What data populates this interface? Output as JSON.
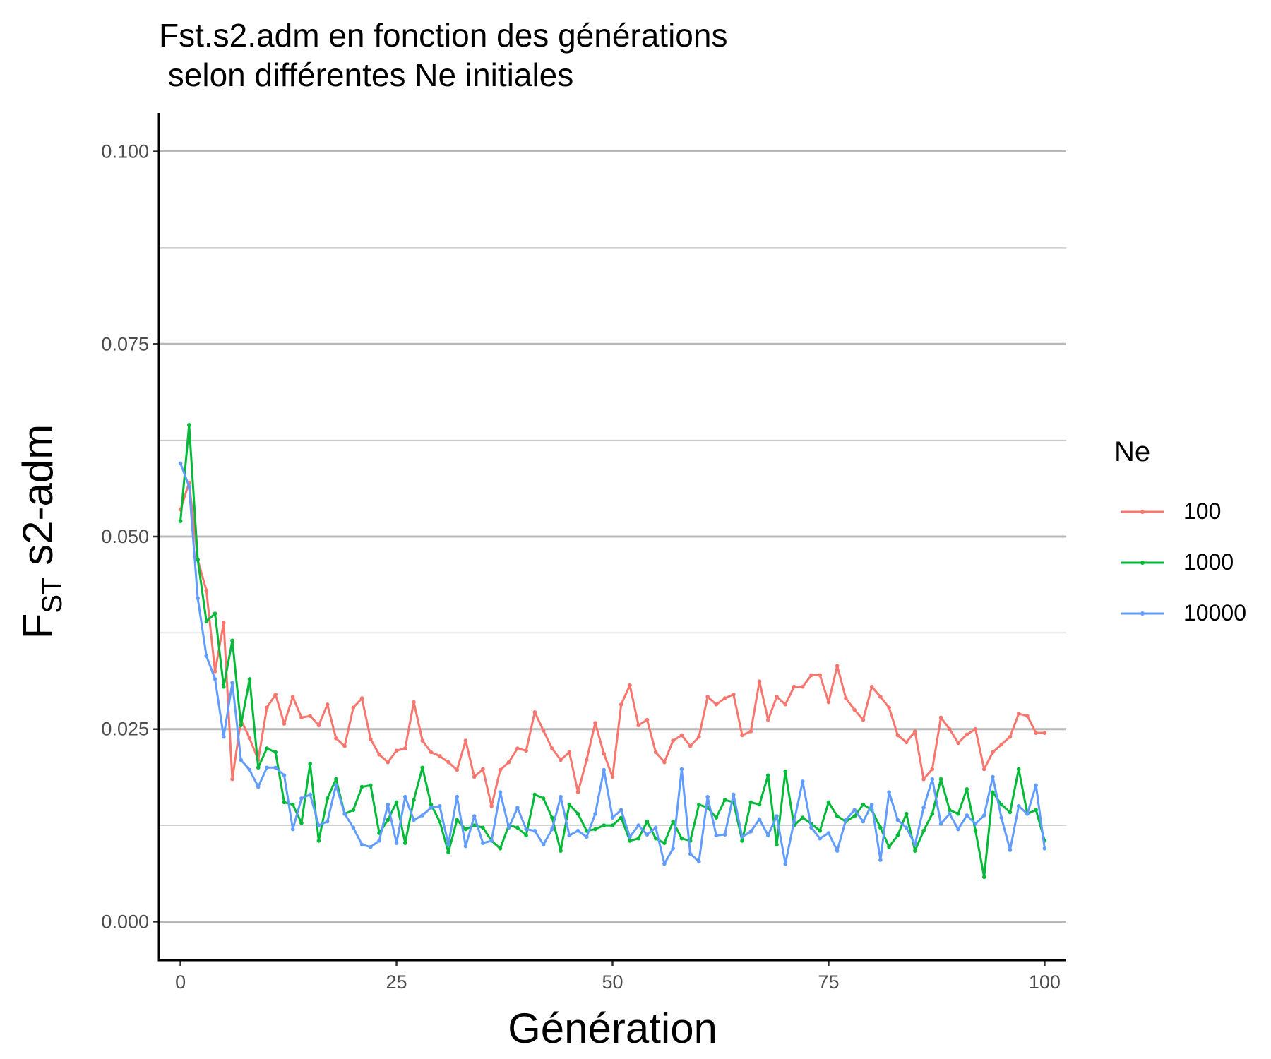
{
  "chart_data": {
    "type": "line",
    "title": "Fst.s2.adm en fonction des générations\n selon différentes Ne initiales",
    "xlabel": "Génération",
    "ylabel_main": "F",
    "ylabel_sub": "ST",
    "ylabel_rest": " s2-adm",
    "xlim": [
      -2.5,
      102.5
    ],
    "ylim": [
      -0.005,
      0.105
    ],
    "x_ticks": [
      0,
      25,
      50,
      75,
      100
    ],
    "x_tick_labels": [
      "0",
      "25",
      "50",
      "75",
      "100"
    ],
    "y_ticks": [
      0.0,
      0.025,
      0.05,
      0.075,
      0.1
    ],
    "y_tick_labels": [
      "0.000",
      "0.025",
      "0.050",
      "0.075",
      "0.100"
    ],
    "y_minor_ticks": [
      0.0125,
      0.0375,
      0.0625,
      0.0875
    ],
    "grid": "horizontal",
    "legend": {
      "title": "Ne",
      "position": "right"
    },
    "x": [
      0,
      1,
      2,
      3,
      4,
      5,
      6,
      7,
      8,
      9,
      10,
      11,
      12,
      13,
      14,
      15,
      16,
      17,
      18,
      19,
      20,
      21,
      22,
      23,
      24,
      25,
      26,
      27,
      28,
      29,
      30,
      31,
      32,
      33,
      34,
      35,
      36,
      37,
      38,
      39,
      40,
      41,
      42,
      43,
      44,
      45,
      46,
      47,
      48,
      49,
      50,
      51,
      52,
      53,
      54,
      55,
      56,
      57,
      58,
      59,
      60,
      61,
      62,
      63,
      64,
      65,
      66,
      67,
      68,
      69,
      70,
      71,
      72,
      73,
      74,
      75,
      76,
      77,
      78,
      79,
      80,
      81,
      82,
      83,
      84,
      85,
      86,
      87,
      88,
      89,
      90,
      91,
      92,
      93,
      94,
      95,
      96,
      97,
      98,
      99,
      100
    ],
    "series": [
      {
        "name": "100",
        "color": "#F8766D",
        "values": [
          0.0535,
          0.057,
          0.047,
          0.043,
          0.0325,
          0.0388,
          0.0185,
          0.0262,
          0.0238,
          0.021,
          0.0278,
          0.0295,
          0.0257,
          0.0292,
          0.0265,
          0.0267,
          0.0255,
          0.0282,
          0.0238,
          0.0228,
          0.0278,
          0.029,
          0.0237,
          0.0217,
          0.0207,
          0.0222,
          0.0225,
          0.0285,
          0.0235,
          0.022,
          0.0215,
          0.0207,
          0.0197,
          0.0235,
          0.0188,
          0.0198,
          0.015,
          0.0197,
          0.0207,
          0.0225,
          0.0222,
          0.0272,
          0.0248,
          0.0225,
          0.021,
          0.022,
          0.0168,
          0.021,
          0.0258,
          0.0218,
          0.0188,
          0.0282,
          0.0307,
          0.0255,
          0.0262,
          0.022,
          0.0207,
          0.0235,
          0.0242,
          0.0228,
          0.024,
          0.0292,
          0.0282,
          0.029,
          0.0295,
          0.0242,
          0.0247,
          0.0312,
          0.0262,
          0.0292,
          0.0282,
          0.0305,
          0.0305,
          0.032,
          0.032,
          0.0285,
          0.0332,
          0.029,
          0.0275,
          0.0262,
          0.0305,
          0.0292,
          0.0278,
          0.0242,
          0.0233,
          0.0247,
          0.0185,
          0.0198,
          0.0265,
          0.025,
          0.0232,
          0.0243,
          0.025,
          0.0198,
          0.022,
          0.023,
          0.024,
          0.027,
          0.0267,
          0.0245,
          0.0245
        ]
      },
      {
        "name": "1000",
        "color": "#00BA38",
        "values": [
          0.052,
          0.0645,
          0.047,
          0.039,
          0.04,
          0.0305,
          0.0365,
          0.0255,
          0.0315,
          0.02,
          0.0225,
          0.022,
          0.0155,
          0.0152,
          0.0128,
          0.0205,
          0.0105,
          0.016,
          0.0185,
          0.014,
          0.0145,
          0.0175,
          0.0177,
          0.0115,
          0.0132,
          0.0155,
          0.0102,
          0.0158,
          0.02,
          0.0152,
          0.013,
          0.009,
          0.0132,
          0.012,
          0.0125,
          0.0122,
          0.0105,
          0.0095,
          0.0125,
          0.0122,
          0.0112,
          0.0165,
          0.016,
          0.0135,
          0.0092,
          0.0152,
          0.014,
          0.0118,
          0.012,
          0.0125,
          0.0125,
          0.0135,
          0.0105,
          0.0108,
          0.013,
          0.0108,
          0.0102,
          0.013,
          0.0108,
          0.0105,
          0.0152,
          0.0148,
          0.0135,
          0.0158,
          0.0155,
          0.0105,
          0.0155,
          0.0152,
          0.019,
          0.01,
          0.0195,
          0.0125,
          0.0135,
          0.0127,
          0.0118,
          0.0155,
          0.0137,
          0.013,
          0.0137,
          0.0152,
          0.0145,
          0.0122,
          0.0097,
          0.0112,
          0.014,
          0.0092,
          0.0118,
          0.014,
          0.0185,
          0.0145,
          0.014,
          0.0172,
          0.0118,
          0.0058,
          0.0168,
          0.0152,
          0.0142,
          0.0198,
          0.014,
          0.0145,
          0.0105
        ]
      },
      {
        "name": "10000",
        "color": "#619CFF",
        "values": [
          0.0595,
          0.0565,
          0.042,
          0.0345,
          0.0315,
          0.024,
          0.031,
          0.021,
          0.0197,
          0.0175,
          0.02,
          0.02,
          0.019,
          0.012,
          0.016,
          0.0165,
          0.0125,
          0.013,
          0.0177,
          0.014,
          0.0122,
          0.01,
          0.0097,
          0.0105,
          0.0152,
          0.0102,
          0.0162,
          0.0132,
          0.0138,
          0.0148,
          0.015,
          0.01,
          0.0162,
          0.0098,
          0.0137,
          0.0102,
          0.0105,
          0.0168,
          0.0122,
          0.0148,
          0.012,
          0.0118,
          0.01,
          0.012,
          0.0162,
          0.0112,
          0.0118,
          0.011,
          0.014,
          0.0197,
          0.0135,
          0.0145,
          0.011,
          0.0125,
          0.0113,
          0.0122,
          0.0075,
          0.0095,
          0.0198,
          0.0088,
          0.0078,
          0.0162,
          0.0112,
          0.0113,
          0.0165,
          0.011,
          0.0117,
          0.0133,
          0.0112,
          0.0137,
          0.0075,
          0.013,
          0.0182,
          0.0122,
          0.0108,
          0.0115,
          0.0092,
          0.0132,
          0.0145,
          0.013,
          0.0152,
          0.008,
          0.0168,
          0.0132,
          0.0122,
          0.01,
          0.0148,
          0.0185,
          0.0127,
          0.014,
          0.012,
          0.0138,
          0.0127,
          0.0138,
          0.0188,
          0.0135,
          0.0093,
          0.015,
          0.014,
          0.0177,
          0.0095
        ]
      }
    ]
  }
}
